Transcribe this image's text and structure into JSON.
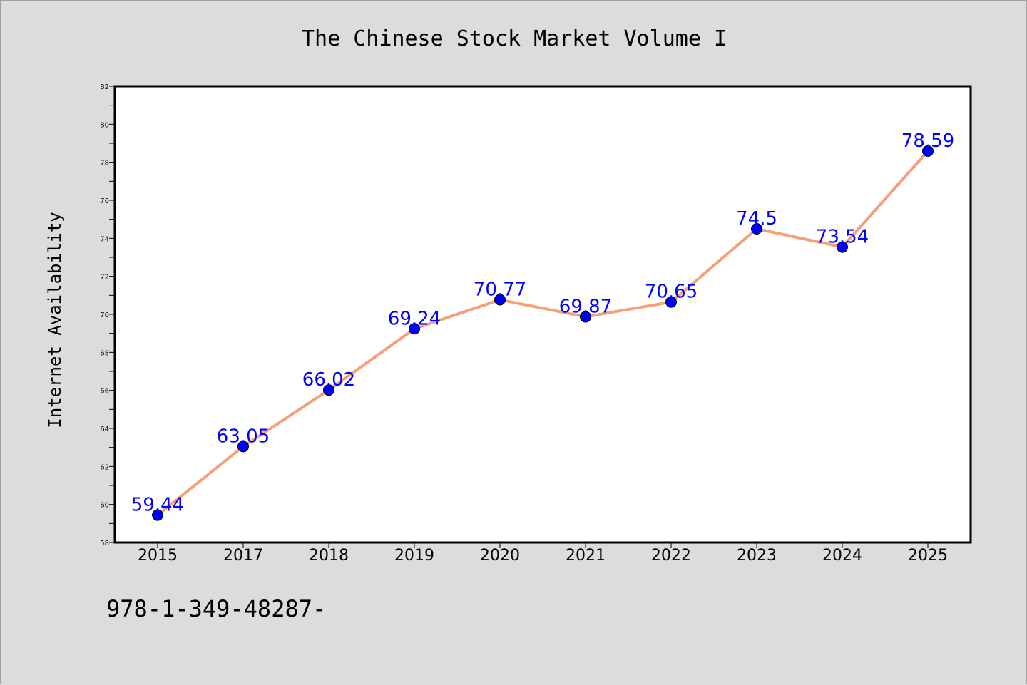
{
  "chart_data": {
    "type": "line",
    "title": "The Chinese Stock Market Volume I",
    "xlabel": "",
    "ylabel": "Internet Availability",
    "categories": [
      "2015",
      "2017",
      "2018",
      "2019",
      "2020",
      "2021",
      "2022",
      "2023",
      "2024",
      "2025"
    ],
    "series": [
      {
        "values": [
          59.44,
          63.05,
          66.02,
          69.24,
          70.77,
          69.87,
          70.65,
          74.5,
          73.54,
          78.59
        ],
        "labels": [
          "59.44",
          "63.05",
          "66.02",
          "69.24",
          "70.77",
          "69.87",
          "70.65",
          "74.5",
          "73.54",
          "78.59"
        ],
        "line_color": "#f4a07a",
        "marker_color": "#0000ff"
      }
    ],
    "ylim": [
      58,
      82
    ],
    "yticks": [
      "58",
      "60",
      "62",
      "64",
      "66",
      "68",
      "70",
      "72",
      "74",
      "76",
      "78",
      "80",
      "82"
    ],
    "grid": false,
    "legend": "none"
  },
  "footnote": "978-1-349-48287-"
}
